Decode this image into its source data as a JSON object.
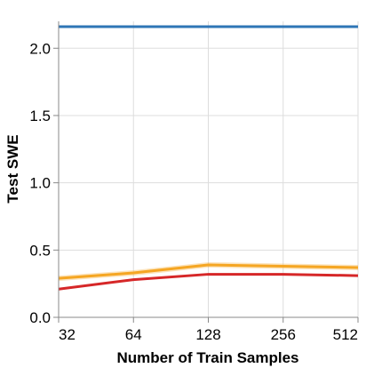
{
  "chart_data": {
    "type": "line",
    "xlabel": "Number of Train Samples",
    "ylabel": "Test SWE",
    "x_scale": "log2",
    "categories": [
      "32",
      "64",
      "128",
      "256",
      "512"
    ],
    "x": [
      32,
      64,
      128,
      256,
      512
    ],
    "xlim": [
      32,
      512
    ],
    "ylim": [
      0,
      2.2
    ],
    "y_ticks": [
      "0.0",
      "0.5",
      "1.0",
      "1.5",
      "2.0"
    ],
    "y_tick_values": [
      0,
      0.5,
      1.0,
      1.5,
      2.0
    ],
    "grid": true,
    "legend": "none",
    "series": [
      {
        "color": "#2e75b6",
        "values": [
          2.16,
          2.16,
          2.16,
          2.16,
          2.16
        ],
        "band": 0.0
      },
      {
        "color": "#f5a623",
        "values": [
          0.29,
          0.33,
          0.39,
          0.38,
          0.37
        ],
        "band": 0.02
      },
      {
        "color": "#d62728",
        "values": [
          0.21,
          0.28,
          0.32,
          0.32,
          0.31
        ],
        "band": 0.0
      }
    ]
  }
}
